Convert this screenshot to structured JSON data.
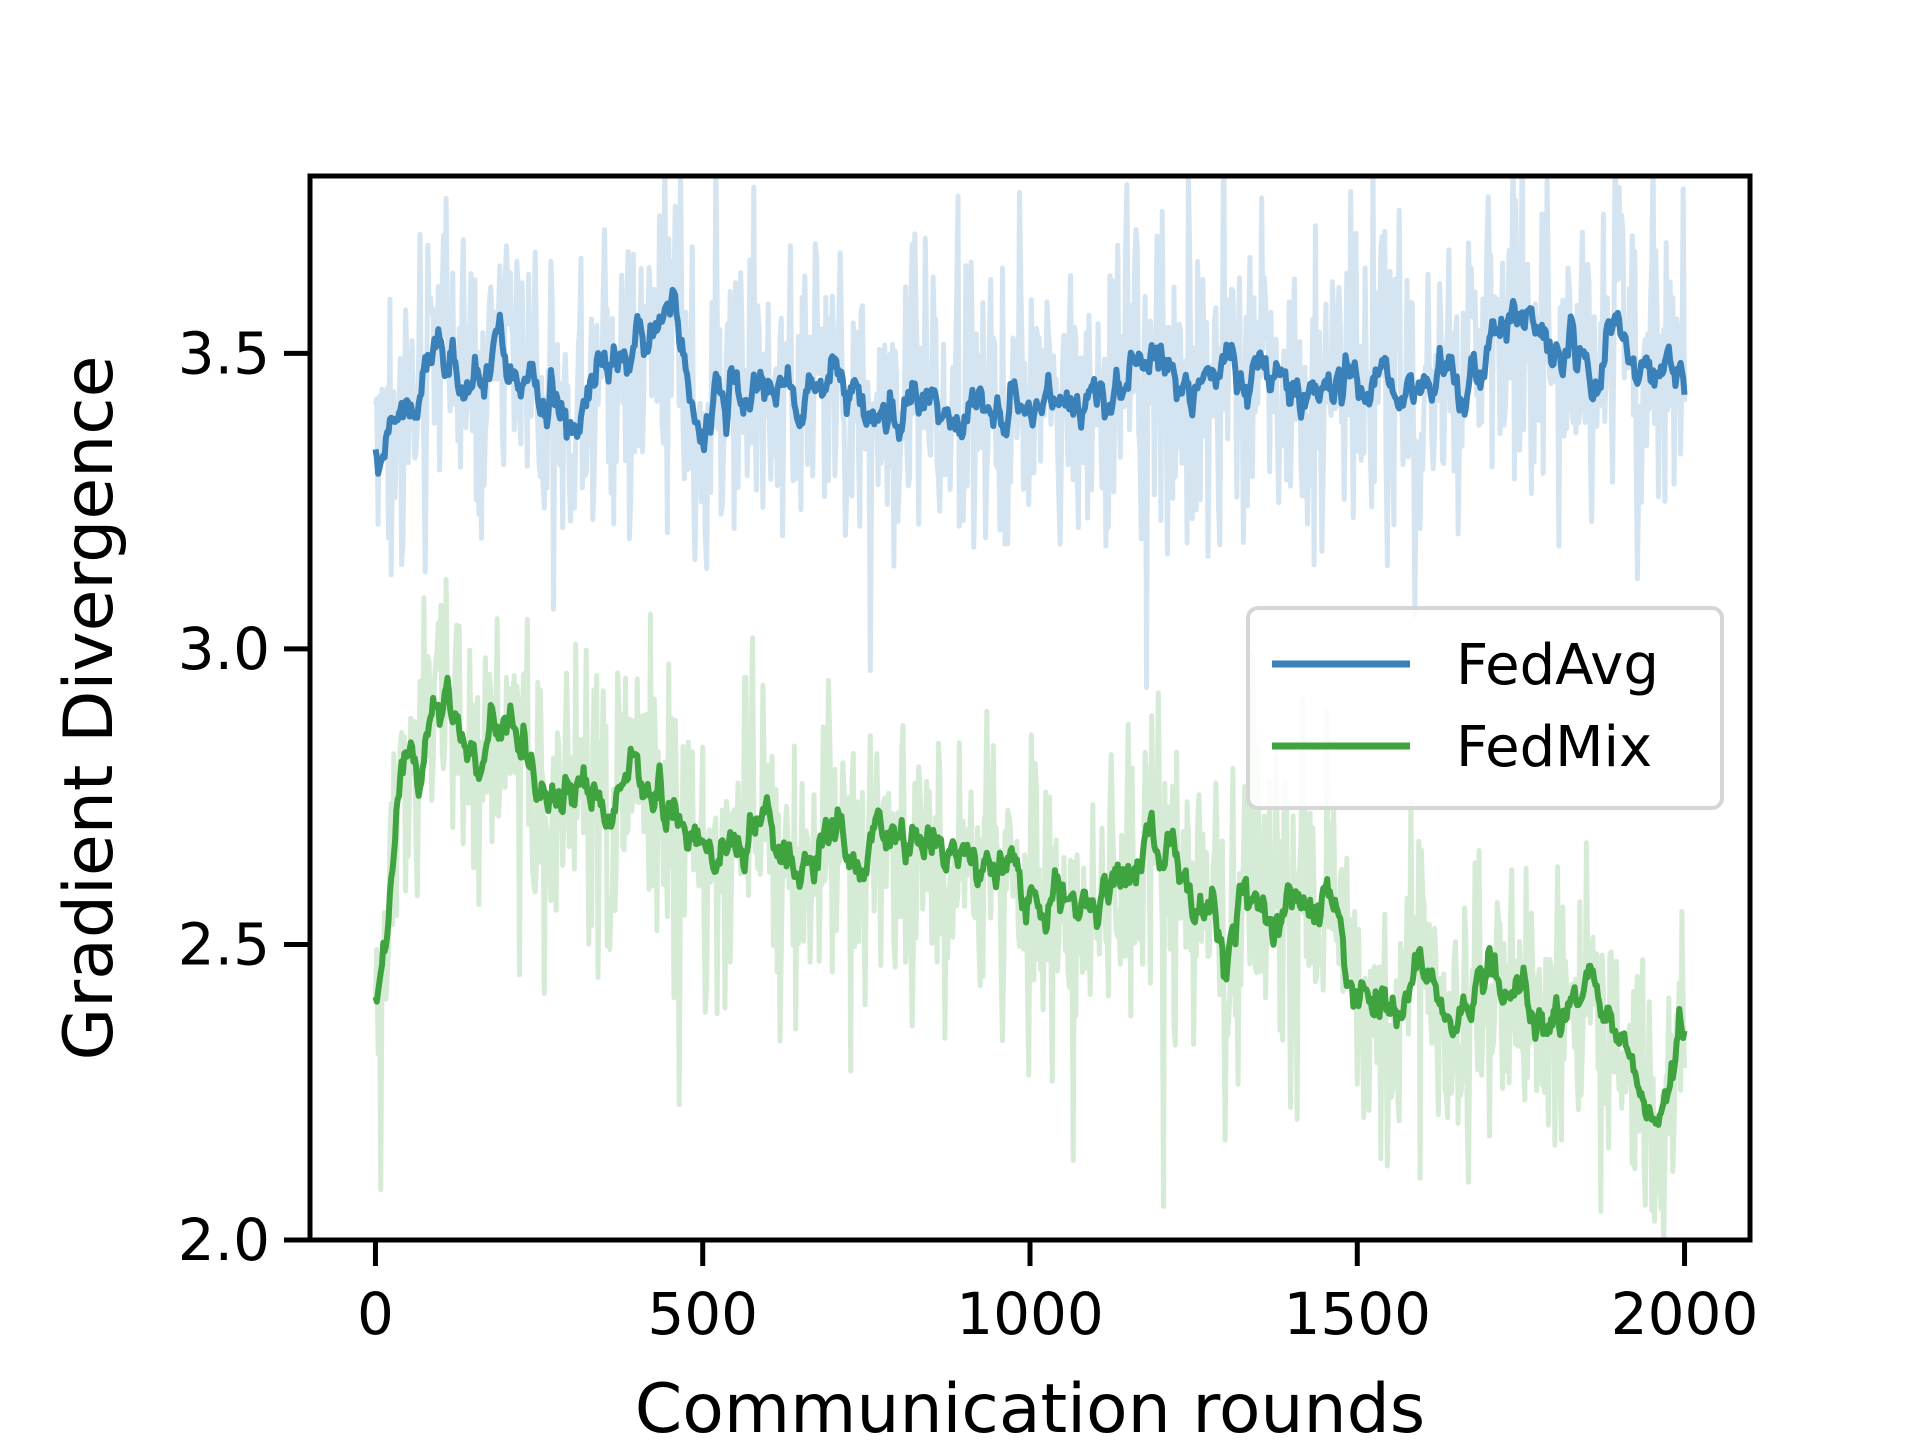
{
  "chart_data": {
    "type": "line",
    "title": "",
    "xlabel": "Communication rounds",
    "ylabel": "Gradient Divergence",
    "xlim": [
      -100,
      2100
    ],
    "ylim": [
      2.0,
      3.8
    ],
    "xticks": [
      "0",
      "500",
      "1000",
      "1500",
      "2000"
    ],
    "yticks": [
      "2.0",
      "2.5",
      "3.0",
      "3.5"
    ],
    "legend_position": "center-right",
    "series": [
      {
        "name": "FedAvg",
        "color": "#3a80b9",
        "raw_color": "#d4e4f0",
        "x": [
          0,
          50,
          100,
          150,
          200,
          250,
          300,
          350,
          400,
          450,
          500,
          550,
          600,
          650,
          700,
          750,
          800,
          850,
          900,
          950,
          1000,
          1050,
          1100,
          1150,
          1200,
          1250,
          1300,
          1350,
          1400,
          1450,
          1500,
          1550,
          1600,
          1650,
          1700,
          1750,
          1800,
          1850,
          1900,
          1950,
          2000
        ],
        "smoothed": [
          3.35,
          3.42,
          3.5,
          3.42,
          3.45,
          3.42,
          3.38,
          3.5,
          3.48,
          3.55,
          3.4,
          3.4,
          3.45,
          3.4,
          3.42,
          3.45,
          3.4,
          3.45,
          3.42,
          3.44,
          3.42,
          3.42,
          3.43,
          3.47,
          3.5,
          3.45,
          3.45,
          3.46,
          3.45,
          3.47,
          3.48,
          3.46,
          3.42,
          3.45,
          3.5,
          3.55,
          3.5,
          3.48,
          3.52,
          3.5,
          3.44
        ]
      },
      {
        "name": "FedMix",
        "color": "#3fa33f",
        "raw_color": "#d5ebd5",
        "x": [
          0,
          50,
          100,
          150,
          200,
          250,
          300,
          350,
          400,
          450,
          500,
          550,
          600,
          650,
          700,
          750,
          800,
          850,
          900,
          950,
          1000,
          1050,
          1100,
          1150,
          1200,
          1250,
          1300,
          1350,
          1400,
          1450,
          1500,
          1550,
          1600,
          1650,
          1700,
          1750,
          1800,
          1850,
          1900,
          1950,
          2000
        ],
        "smoothed": [
          2.4,
          2.82,
          2.92,
          2.8,
          2.86,
          2.8,
          2.78,
          2.78,
          2.8,
          2.72,
          2.66,
          2.65,
          2.72,
          2.66,
          2.68,
          2.64,
          2.68,
          2.66,
          2.65,
          2.62,
          2.58,
          2.58,
          2.57,
          2.63,
          2.65,
          2.58,
          2.52,
          2.55,
          2.57,
          2.56,
          2.43,
          2.42,
          2.44,
          2.38,
          2.45,
          2.42,
          2.38,
          2.44,
          2.38,
          2.24,
          2.38
        ]
      }
    ]
  }
}
